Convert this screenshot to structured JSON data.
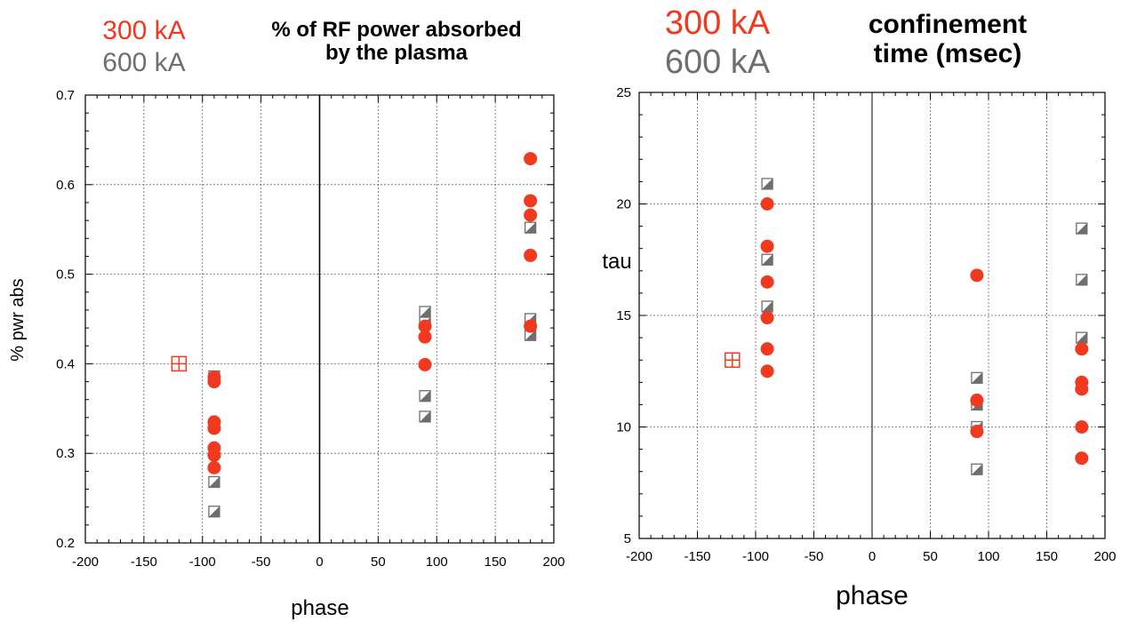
{
  "chart_data": [
    {
      "type": "scatter",
      "title": "% of RF power absorbed by the plasma",
      "title_lines": [
        "% of RF power absorbed",
        "by the plasma"
      ],
      "xlabel": "phase",
      "ylabel": "% pwr abs",
      "xlim": [
        -200,
        200
      ],
      "ylim": [
        0.2,
        0.7
      ],
      "xticks": [
        -200,
        -150,
        -100,
        -50,
        0,
        50,
        100,
        150,
        200
      ],
      "yticks": [
        0.2,
        0.3,
        0.4,
        0.5,
        0.6,
        0.7
      ],
      "ytick_labels": [
        "0.2",
        "0.3",
        "0.4",
        "0.5",
        "0.6",
        "0.7"
      ],
      "grid": true,
      "legend_placement": "top-left",
      "series": [
        {
          "name": "300 kA",
          "color": "#f0391f",
          "marker": "filled-circle",
          "points": [
            [
              -90,
              0.385
            ],
            [
              -90,
              0.38
            ],
            [
              -90,
              0.335
            ],
            [
              -90,
              0.328
            ],
            [
              -90,
              0.306
            ],
            [
              -90,
              0.298
            ],
            [
              -90,
              0.284
            ],
            [
              90,
              0.442
            ],
            [
              90,
              0.43
            ],
            [
              90,
              0.399
            ],
            [
              180,
              0.629
            ],
            [
              180,
              0.582
            ],
            [
              180,
              0.566
            ],
            [
              180,
              0.521
            ],
            [
              180,
              0.442
            ]
          ]
        },
        {
          "name": "600 kA",
          "color": "#6e6e6e",
          "marker": "half-filled-square",
          "points": [
            [
              -90,
              0.386
            ],
            [
              -90,
              0.268
            ],
            [
              -90,
              0.235
            ],
            [
              90,
              0.458
            ],
            [
              90,
              0.446
            ],
            [
              90,
              0.364
            ],
            [
              90,
              0.341
            ],
            [
              180,
              0.552
            ],
            [
              180,
              0.45
            ],
            [
              180,
              0.432
            ]
          ]
        },
        {
          "name": "",
          "color": "#f0391f",
          "marker": "crossed-square",
          "points": [
            [
              -120,
              0.4
            ]
          ]
        }
      ]
    },
    {
      "type": "scatter",
      "title": "confinement time (msec)",
      "title_lines": [
        "confinement",
        "time (msec)"
      ],
      "xlabel": "phase",
      "ylabel": "tau",
      "xlim": [
        -200,
        200
      ],
      "ylim": [
        5,
        25
      ],
      "xticks": [
        -200,
        -150,
        -100,
        -50,
        0,
        50,
        100,
        150,
        200
      ],
      "yticks": [
        5,
        10,
        15,
        20,
        25
      ],
      "ytick_labels": [
        "5",
        "10",
        "15",
        "20",
        "25"
      ],
      "grid": true,
      "legend_placement": "top-left",
      "series": [
        {
          "name": "300 kA",
          "color": "#f0391f",
          "marker": "filled-circle",
          "points": [
            [
              -90,
              20.0
            ],
            [
              -90,
              18.1
            ],
            [
              -90,
              16.5
            ],
            [
              -90,
              14.9
            ],
            [
              -90,
              13.5
            ],
            [
              -90,
              12.5
            ],
            [
              90,
              16.8
            ],
            [
              90,
              11.2
            ],
            [
              90,
              9.8
            ],
            [
              180,
              13.5
            ],
            [
              180,
              12.0
            ],
            [
              180,
              11.7
            ],
            [
              180,
              10.0
            ],
            [
              180,
              8.6
            ]
          ]
        },
        {
          "name": "600 kA",
          "color": "#6e6e6e",
          "marker": "half-filled-square",
          "points": [
            [
              -90,
              20.9
            ],
            [
              -90,
              17.5
            ],
            [
              -90,
              15.4
            ],
            [
              90,
              12.2
            ],
            [
              90,
              11.0
            ],
            [
              90,
              10.0
            ],
            [
              90,
              8.1
            ],
            [
              180,
              18.9
            ],
            [
              180,
              16.6
            ],
            [
              180,
              14.0
            ]
          ]
        },
        {
          "name": "",
          "color": "#f0391f",
          "marker": "crossed-square",
          "points": [
            [
              -120,
              13.0
            ]
          ]
        }
      ]
    }
  ]
}
